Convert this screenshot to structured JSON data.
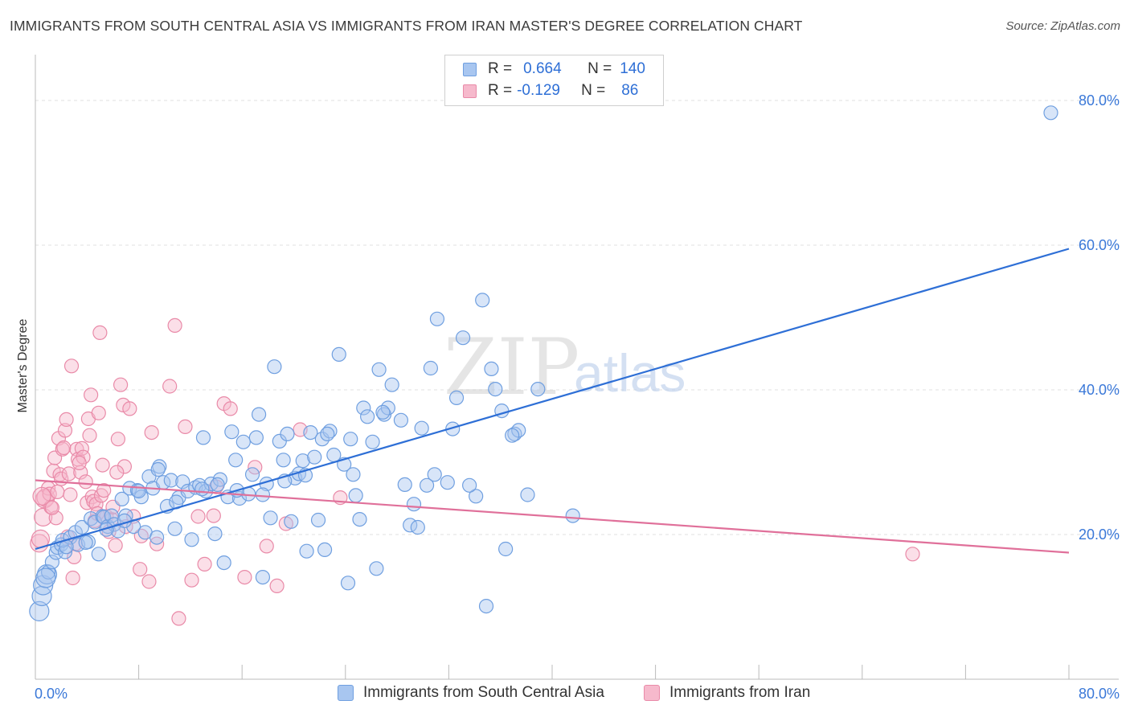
{
  "title": "IMMIGRANTS FROM SOUTH CENTRAL ASIA VS IMMIGRANTS FROM IRAN MASTER'S DEGREE CORRELATION CHART",
  "source": "Source: ZipAtlas.com",
  "watermark": {
    "zip": "ZIP",
    "atlas": "atlas"
  },
  "legend": {
    "rows": [
      {
        "r_label": "R =",
        "r_value": "0.664",
        "n_label": "N =",
        "n_value": "140",
        "color": "#a8c6f0",
        "border": "#6f9fe0"
      },
      {
        "r_label": "R =",
        "r_value": "-0.129",
        "n_label": "N =",
        "n_value": "86",
        "color": "#f6b9cc",
        "border": "#e98aa8"
      }
    ]
  },
  "bottom_legend": [
    {
      "label": "Immigrants from South Central Asia",
      "color": "#a8c6f0",
      "border": "#6f9fe0"
    },
    {
      "label": "Immigrants from Iran",
      "color": "#f6b9cc",
      "border": "#e98aa8"
    }
  ],
  "colors": {
    "blue": "#2e6fd6",
    "pink": "#e0709a",
    "blue_fill": "#a8c6f0",
    "pink_fill": "#f6b9cc",
    "grid": "#e2e2e2",
    "axis_text": "#3a78d8"
  },
  "chart_data": {
    "type": "scatter",
    "title": "IMMIGRANTS FROM SOUTH CENTRAL ASIA VS IMMIGRANTS FROM IRAN MASTER'S DEGREE CORRELATION CHART",
    "xlabel": "",
    "ylabel": "Master's Degree",
    "xlim": [
      0,
      80
    ],
    "ylim": [
      0,
      85
    ],
    "x_tick_labels": [
      "0.0%",
      "80.0%"
    ],
    "y_ticks": [
      20,
      40,
      60,
      80
    ],
    "y_tick_labels": [
      "20.0%",
      "40.0%",
      "60.0%",
      "80.0%"
    ],
    "grid": true,
    "legend_position": "top-center",
    "series": [
      {
        "name": "Immigrants from South Central Asia",
        "R": 0.664,
        "N": 140,
        "trend": {
          "x0": 0,
          "y0": 18.0,
          "x1": 80,
          "y1": 59.5
        },
        "points": [
          [
            0.3,
            9.4
          ],
          [
            0.5,
            11.5
          ],
          [
            0.6,
            13.0
          ],
          [
            0.9,
            14.5
          ],
          [
            1.0,
            14.8
          ],
          [
            1.3,
            16.2
          ],
          [
            1.6,
            17.5
          ],
          [
            1.7,
            18.2
          ],
          [
            2.0,
            18.6
          ],
          [
            2.3,
            17.6
          ],
          [
            2.1,
            19.2
          ],
          [
            2.7,
            19.6
          ],
          [
            3.1,
            20.3
          ],
          [
            3.3,
            18.6
          ],
          [
            3.6,
            21.0
          ],
          [
            4.1,
            19.0
          ],
          [
            4.3,
            22.2
          ],
          [
            4.6,
            21.7
          ],
          [
            4.9,
            17.3
          ],
          [
            5.2,
            22.5
          ],
          [
            5.3,
            22.4
          ],
          [
            5.6,
            21.1
          ],
          [
            5.9,
            22.6
          ],
          [
            6.1,
            21.4
          ],
          [
            6.4,
            20.5
          ],
          [
            6.7,
            24.9
          ],
          [
            7.0,
            22.6
          ],
          [
            7.3,
            26.4
          ],
          [
            7.6,
            21.1
          ],
          [
            7.9,
            26.1
          ],
          [
            8.2,
            25.2
          ],
          [
            8.5,
            20.3
          ],
          [
            8.8,
            28.0
          ],
          [
            9.1,
            26.4
          ],
          [
            9.4,
            19.6
          ],
          [
            9.6,
            29.4
          ],
          [
            9.9,
            27.2
          ],
          [
            10.2,
            23.9
          ],
          [
            10.5,
            27.5
          ],
          [
            10.8,
            20.8
          ],
          [
            11.1,
            25.1
          ],
          [
            11.4,
            27.3
          ],
          [
            11.8,
            26.0
          ],
          [
            12.1,
            19.3
          ],
          [
            12.4,
            26.5
          ],
          [
            12.7,
            26.8
          ],
          [
            13.0,
            33.4
          ],
          [
            13.2,
            26.0
          ],
          [
            13.6,
            27.0
          ],
          [
            13.9,
            20.1
          ],
          [
            14.3,
            27.6
          ],
          [
            14.6,
            16.1
          ],
          [
            14.9,
            25.2
          ],
          [
            15.2,
            34.2
          ],
          [
            15.5,
            30.3
          ],
          [
            15.8,
            25.0
          ],
          [
            16.1,
            32.8
          ],
          [
            16.5,
            25.6
          ],
          [
            16.8,
            28.3
          ],
          [
            17.1,
            33.4
          ],
          [
            17.3,
            36.6
          ],
          [
            17.6,
            14.1
          ],
          [
            17.9,
            27.0
          ],
          [
            18.2,
            22.3
          ],
          [
            18.5,
            43.2
          ],
          [
            18.9,
            32.9
          ],
          [
            19.2,
            30.3
          ],
          [
            19.5,
            33.9
          ],
          [
            19.8,
            21.8
          ],
          [
            20.1,
            27.8
          ],
          [
            20.4,
            28.4
          ],
          [
            20.7,
            30.2
          ],
          [
            21.0,
            17.7
          ],
          [
            21.3,
            34.1
          ],
          [
            21.6,
            30.7
          ],
          [
            21.9,
            22.0
          ],
          [
            22.2,
            33.2
          ],
          [
            22.4,
            17.9
          ],
          [
            22.8,
            34.3
          ],
          [
            23.1,
            31.0
          ],
          [
            23.5,
            44.9
          ],
          [
            23.9,
            29.7
          ],
          [
            24.2,
            13.3
          ],
          [
            24.4,
            33.2
          ],
          [
            24.8,
            25.4
          ],
          [
            25.1,
            22.1
          ],
          [
            25.4,
            37.5
          ],
          [
            25.7,
            36.3
          ],
          [
            26.1,
            32.8
          ],
          [
            26.4,
            15.3
          ],
          [
            26.6,
            42.8
          ],
          [
            27.0,
            36.6
          ],
          [
            27.3,
            37.5
          ],
          [
            27.6,
            40.7
          ],
          [
            28.6,
            26.9
          ],
          [
            29.0,
            21.3
          ],
          [
            29.3,
            24.2
          ],
          [
            29.6,
            21.0
          ],
          [
            29.9,
            34.7
          ],
          [
            30.6,
            43.0
          ],
          [
            30.9,
            28.3
          ],
          [
            31.1,
            49.8
          ],
          [
            31.9,
            27.2
          ],
          [
            32.3,
            34.6
          ],
          [
            32.6,
            38.9
          ],
          [
            33.1,
            47.2
          ],
          [
            34.1,
            25.3
          ],
          [
            34.6,
            52.4
          ],
          [
            34.9,
            10.1
          ],
          [
            35.3,
            42.9
          ],
          [
            35.6,
            40.1
          ],
          [
            36.1,
            37.1
          ],
          [
            36.4,
            18.0
          ],
          [
            37.1,
            33.9
          ],
          [
            37.4,
            34.4
          ],
          [
            38.1,
            25.5
          ],
          [
            38.9,
            40.1
          ],
          [
            41.6,
            22.6
          ],
          [
            78.6,
            78.3
          ],
          [
            0.8,
            14.0
          ],
          [
            2.4,
            18.3
          ],
          [
            3.9,
            18.9
          ],
          [
            5.5,
            20.7
          ],
          [
            6.9,
            21.9
          ],
          [
            8.0,
            26.0
          ],
          [
            9.5,
            29.0
          ],
          [
            10.9,
            24.5
          ],
          [
            12.9,
            26.3
          ],
          [
            14.1,
            26.9
          ],
          [
            15.6,
            26.1
          ],
          [
            17.6,
            25.5
          ],
          [
            19.3,
            27.4
          ],
          [
            20.9,
            28.2
          ],
          [
            22.6,
            33.9
          ],
          [
            24.6,
            28.3
          ],
          [
            26.9,
            36.9
          ],
          [
            28.3,
            35.8
          ],
          [
            30.3,
            26.8
          ],
          [
            33.6,
            26.8
          ],
          [
            36.9,
            33.7
          ]
        ]
      },
      {
        "name": "Immigrants from Iran",
        "R": -0.129,
        "N": 86,
        "trend": {
          "x0": 0,
          "y0": 27.5,
          "x1": 80,
          "y1": 17.5
        },
        "points": [
          [
            0.3,
            18.8
          ],
          [
            0.4,
            19.4
          ],
          [
            0.6,
            22.4
          ],
          [
            0.7,
            24.9
          ],
          [
            0.8,
            25.1
          ],
          [
            1.0,
            26.4
          ],
          [
            1.1,
            25.6
          ],
          [
            1.2,
            23.8
          ],
          [
            1.4,
            28.8
          ],
          [
            1.5,
            30.6
          ],
          [
            1.6,
            22.3
          ],
          [
            1.7,
            25.9
          ],
          [
            1.8,
            33.3
          ],
          [
            1.9,
            28.3
          ],
          [
            2.0,
            27.7
          ],
          [
            2.1,
            31.8
          ],
          [
            2.2,
            32.0
          ],
          [
            2.3,
            34.4
          ],
          [
            2.5,
            19.7
          ],
          [
            2.6,
            28.4
          ],
          [
            2.7,
            25.5
          ],
          [
            2.8,
            43.3
          ],
          [
            2.9,
            14.0
          ],
          [
            3.1,
            18.7
          ],
          [
            3.2,
            31.8
          ],
          [
            3.3,
            30.4
          ],
          [
            3.5,
            28.6
          ],
          [
            3.6,
            31.9
          ],
          [
            3.7,
            30.7
          ],
          [
            3.9,
            27.3
          ],
          [
            4.0,
            24.4
          ],
          [
            4.1,
            36.0
          ],
          [
            4.2,
            33.7
          ],
          [
            4.3,
            39.3
          ],
          [
            4.4,
            25.2
          ],
          [
            4.5,
            24.6
          ],
          [
            4.6,
            21.9
          ],
          [
            4.7,
            24.2
          ],
          [
            4.9,
            36.8
          ],
          [
            5.0,
            47.9
          ],
          [
            5.1,
            25.4
          ],
          [
            5.2,
            29.6
          ],
          [
            5.3,
            26.1
          ],
          [
            5.5,
            22.5
          ],
          [
            5.7,
            20.4
          ],
          [
            5.9,
            22.1
          ],
          [
            6.0,
            23.8
          ],
          [
            6.2,
            18.5
          ],
          [
            6.4,
            33.2
          ],
          [
            6.6,
            40.7
          ],
          [
            6.8,
            37.9
          ],
          [
            6.9,
            29.4
          ],
          [
            7.0,
            21.1
          ],
          [
            7.3,
            37.4
          ],
          [
            7.6,
            22.5
          ],
          [
            8.2,
            19.8
          ],
          [
            8.8,
            13.5
          ],
          [
            9.0,
            34.1
          ],
          [
            9.4,
            18.7
          ],
          [
            10.4,
            40.5
          ],
          [
            10.8,
            48.9
          ],
          [
            11.1,
            8.4
          ],
          [
            11.6,
            34.9
          ],
          [
            12.1,
            13.7
          ],
          [
            12.6,
            22.5
          ],
          [
            13.1,
            15.9
          ],
          [
            13.8,
            22.6
          ],
          [
            14.0,
            26.6
          ],
          [
            14.6,
            38.1
          ],
          [
            15.1,
            37.4
          ],
          [
            16.2,
            14.1
          ],
          [
            17.0,
            29.3
          ],
          [
            17.9,
            18.4
          ],
          [
            18.7,
            12.9
          ],
          [
            19.4,
            21.5
          ],
          [
            20.5,
            34.5
          ],
          [
            23.6,
            25.1
          ],
          [
            67.9,
            17.3
          ],
          [
            0.5,
            25.3
          ],
          [
            1.3,
            23.7
          ],
          [
            2.4,
            35.9
          ],
          [
            3.0,
            16.9
          ],
          [
            3.4,
            29.9
          ],
          [
            4.8,
            22.9
          ],
          [
            6.3,
            28.6
          ],
          [
            8.1,
            15.2
          ]
        ]
      }
    ]
  }
}
